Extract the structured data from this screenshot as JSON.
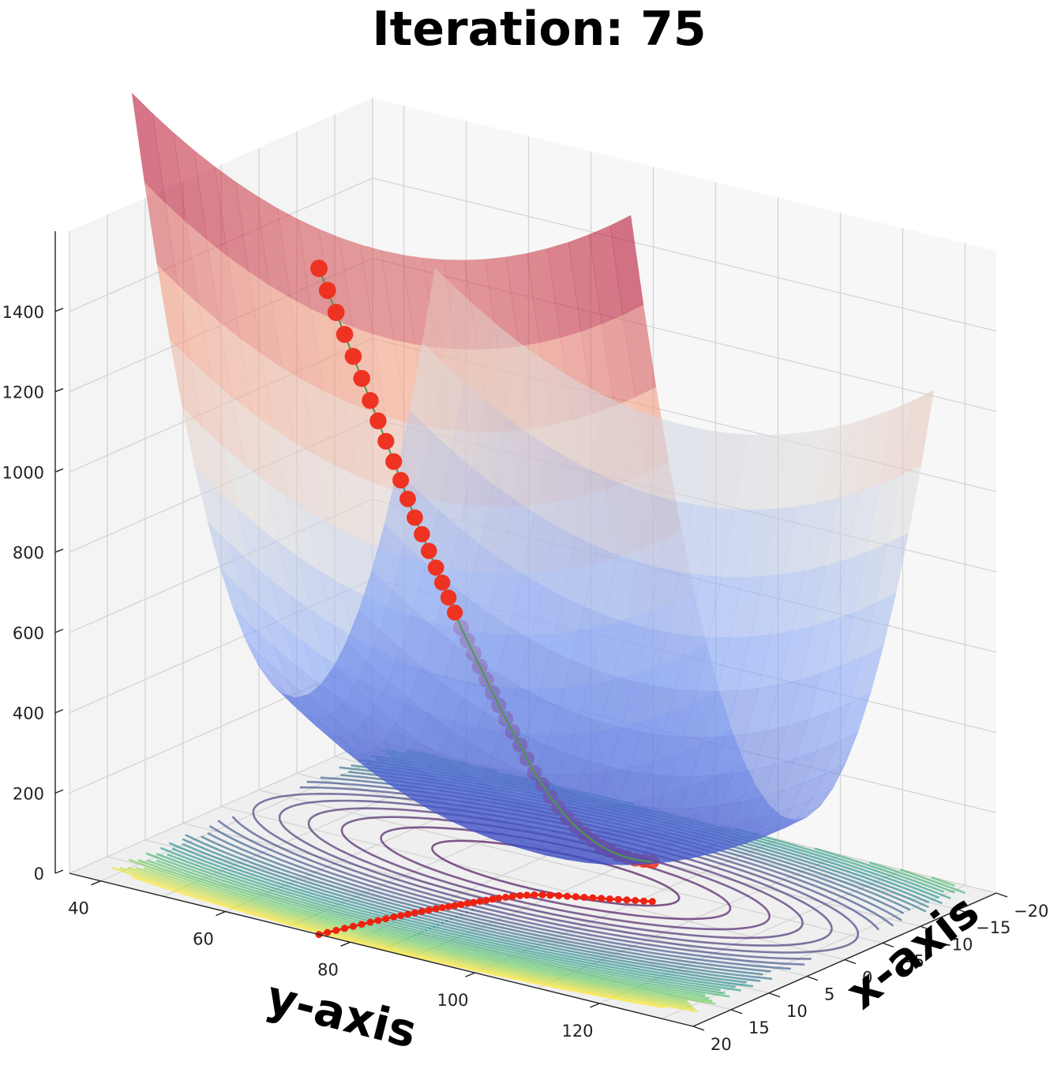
{
  "chart_data": {
    "type": "surface3d",
    "title": "Iteration: 75",
    "xlabel": "x-axis",
    "ylabel": "y-axis",
    "zlabel": "",
    "x_ticks": [
      -20,
      -15,
      -10,
      -5,
      0,
      5,
      10,
      15,
      20
    ],
    "y_ticks": [
      40,
      60,
      80,
      100,
      120
    ],
    "z_ticks": [
      0,
      200,
      400,
      600,
      800,
      1000,
      1200,
      1400
    ],
    "xlim": [
      -20,
      20
    ],
    "ylim": [
      35,
      135
    ],
    "zlim": [
      0,
      1600
    ],
    "surface": {
      "function": "paraboloid",
      "center_x": -3,
      "center_y": 85,
      "min_z": 50,
      "colormap": "coolwarm",
      "alpha": 0.55
    },
    "contours": {
      "colormap": "viridis",
      "count": 30,
      "projection": "z=0"
    },
    "trajectory": {
      "color": "#ee3322",
      "line_color": "#4a9a4a",
      "iterations": 75,
      "points": [
        {
          "x": 20,
          "y": 75,
          "z": 1660
        },
        {
          "x": 19.2,
          "y": 75.4,
          "z": 1600
        },
        {
          "x": 18.4,
          "y": 75.8,
          "z": 1540
        },
        {
          "x": 17.6,
          "y": 76.2,
          "z": 1480
        },
        {
          "x": 16.8,
          "y": 76.6,
          "z": 1420
        },
        {
          "x": 16.0,
          "y": 77.0,
          "z": 1360
        },
        {
          "x": 15.2,
          "y": 77.4,
          "z": 1300
        },
        {
          "x": 14.5,
          "y": 77.8,
          "z": 1245
        },
        {
          "x": 13.8,
          "y": 78.2,
          "z": 1190
        },
        {
          "x": 13.1,
          "y": 78.6,
          "z": 1135
        },
        {
          "x": 12.5,
          "y": 79.0,
          "z": 1085
        },
        {
          "x": 11.9,
          "y": 79.4,
          "z": 1035
        },
        {
          "x": 11.3,
          "y": 79.8,
          "z": 985
        },
        {
          "x": 10.7,
          "y": 80.2,
          "z": 940
        },
        {
          "x": 10.1,
          "y": 80.6,
          "z": 895
        },
        {
          "x": 9.5,
          "y": 81.0,
          "z": 850
        },
        {
          "x": 9.0,
          "y": 81.4,
          "z": 810
        },
        {
          "x": 8.5,
          "y": 81.8,
          "z": 770
        },
        {
          "x": 8.0,
          "y": 82.2,
          "z": 730
        },
        {
          "x": 7.5,
          "y": 82.6,
          "z": 690
        },
        {
          "x": 7.0,
          "y": 83.0,
          "z": 655
        },
        {
          "x": 6.5,
          "y": 83.4,
          "z": 620
        },
        {
          "x": 6.0,
          "y": 83.8,
          "z": 585
        },
        {
          "x": 5.5,
          "y": 84.2,
          "z": 550
        },
        {
          "x": 5.0,
          "y": 84.6,
          "z": 515
        },
        {
          "x": 4.5,
          "y": 85.0,
          "z": 480
        },
        {
          "x": 4.0,
          "y": 85.5,
          "z": 445
        },
        {
          "x": 3.5,
          "y": 86.0,
          "z": 410
        },
        {
          "x": 3.0,
          "y": 86.6,
          "z": 375
        },
        {
          "x": 2.6,
          "y": 87.2,
          "z": 340
        },
        {
          "x": 2.2,
          "y": 87.9,
          "z": 305
        },
        {
          "x": 1.8,
          "y": 88.7,
          "z": 275
        },
        {
          "x": 1.5,
          "y": 89.6,
          "z": 245
        },
        {
          "x": 1.2,
          "y": 90.6,
          "z": 220
        },
        {
          "x": 0.9,
          "y": 91.6,
          "z": 195
        },
        {
          "x": 0.6,
          "y": 92.6,
          "z": 175
        },
        {
          "x": 0.3,
          "y": 93.6,
          "z": 158
        },
        {
          "x": 0.0,
          "y": 94.6,
          "z": 143
        },
        {
          "x": -0.3,
          "y": 95.6,
          "z": 130
        },
        {
          "x": -0.6,
          "y": 96.6,
          "z": 120
        },
        {
          "x": -0.9,
          "y": 97.6,
          "z": 112
        },
        {
          "x": -1.2,
          "y": 98.6,
          "z": 106
        },
        {
          "x": -1.5,
          "y": 99.6,
          "z": 102
        },
        {
          "x": -1.8,
          "y": 100.6,
          "z": 100
        },
        {
          "x": -2.1,
          "y": 101.6,
          "z": 99
        }
      ]
    },
    "projected_path": {
      "color": "#ee2211",
      "plane": "z=0"
    },
    "panes": {
      "color": "#f2f2f2",
      "grid": true
    }
  }
}
